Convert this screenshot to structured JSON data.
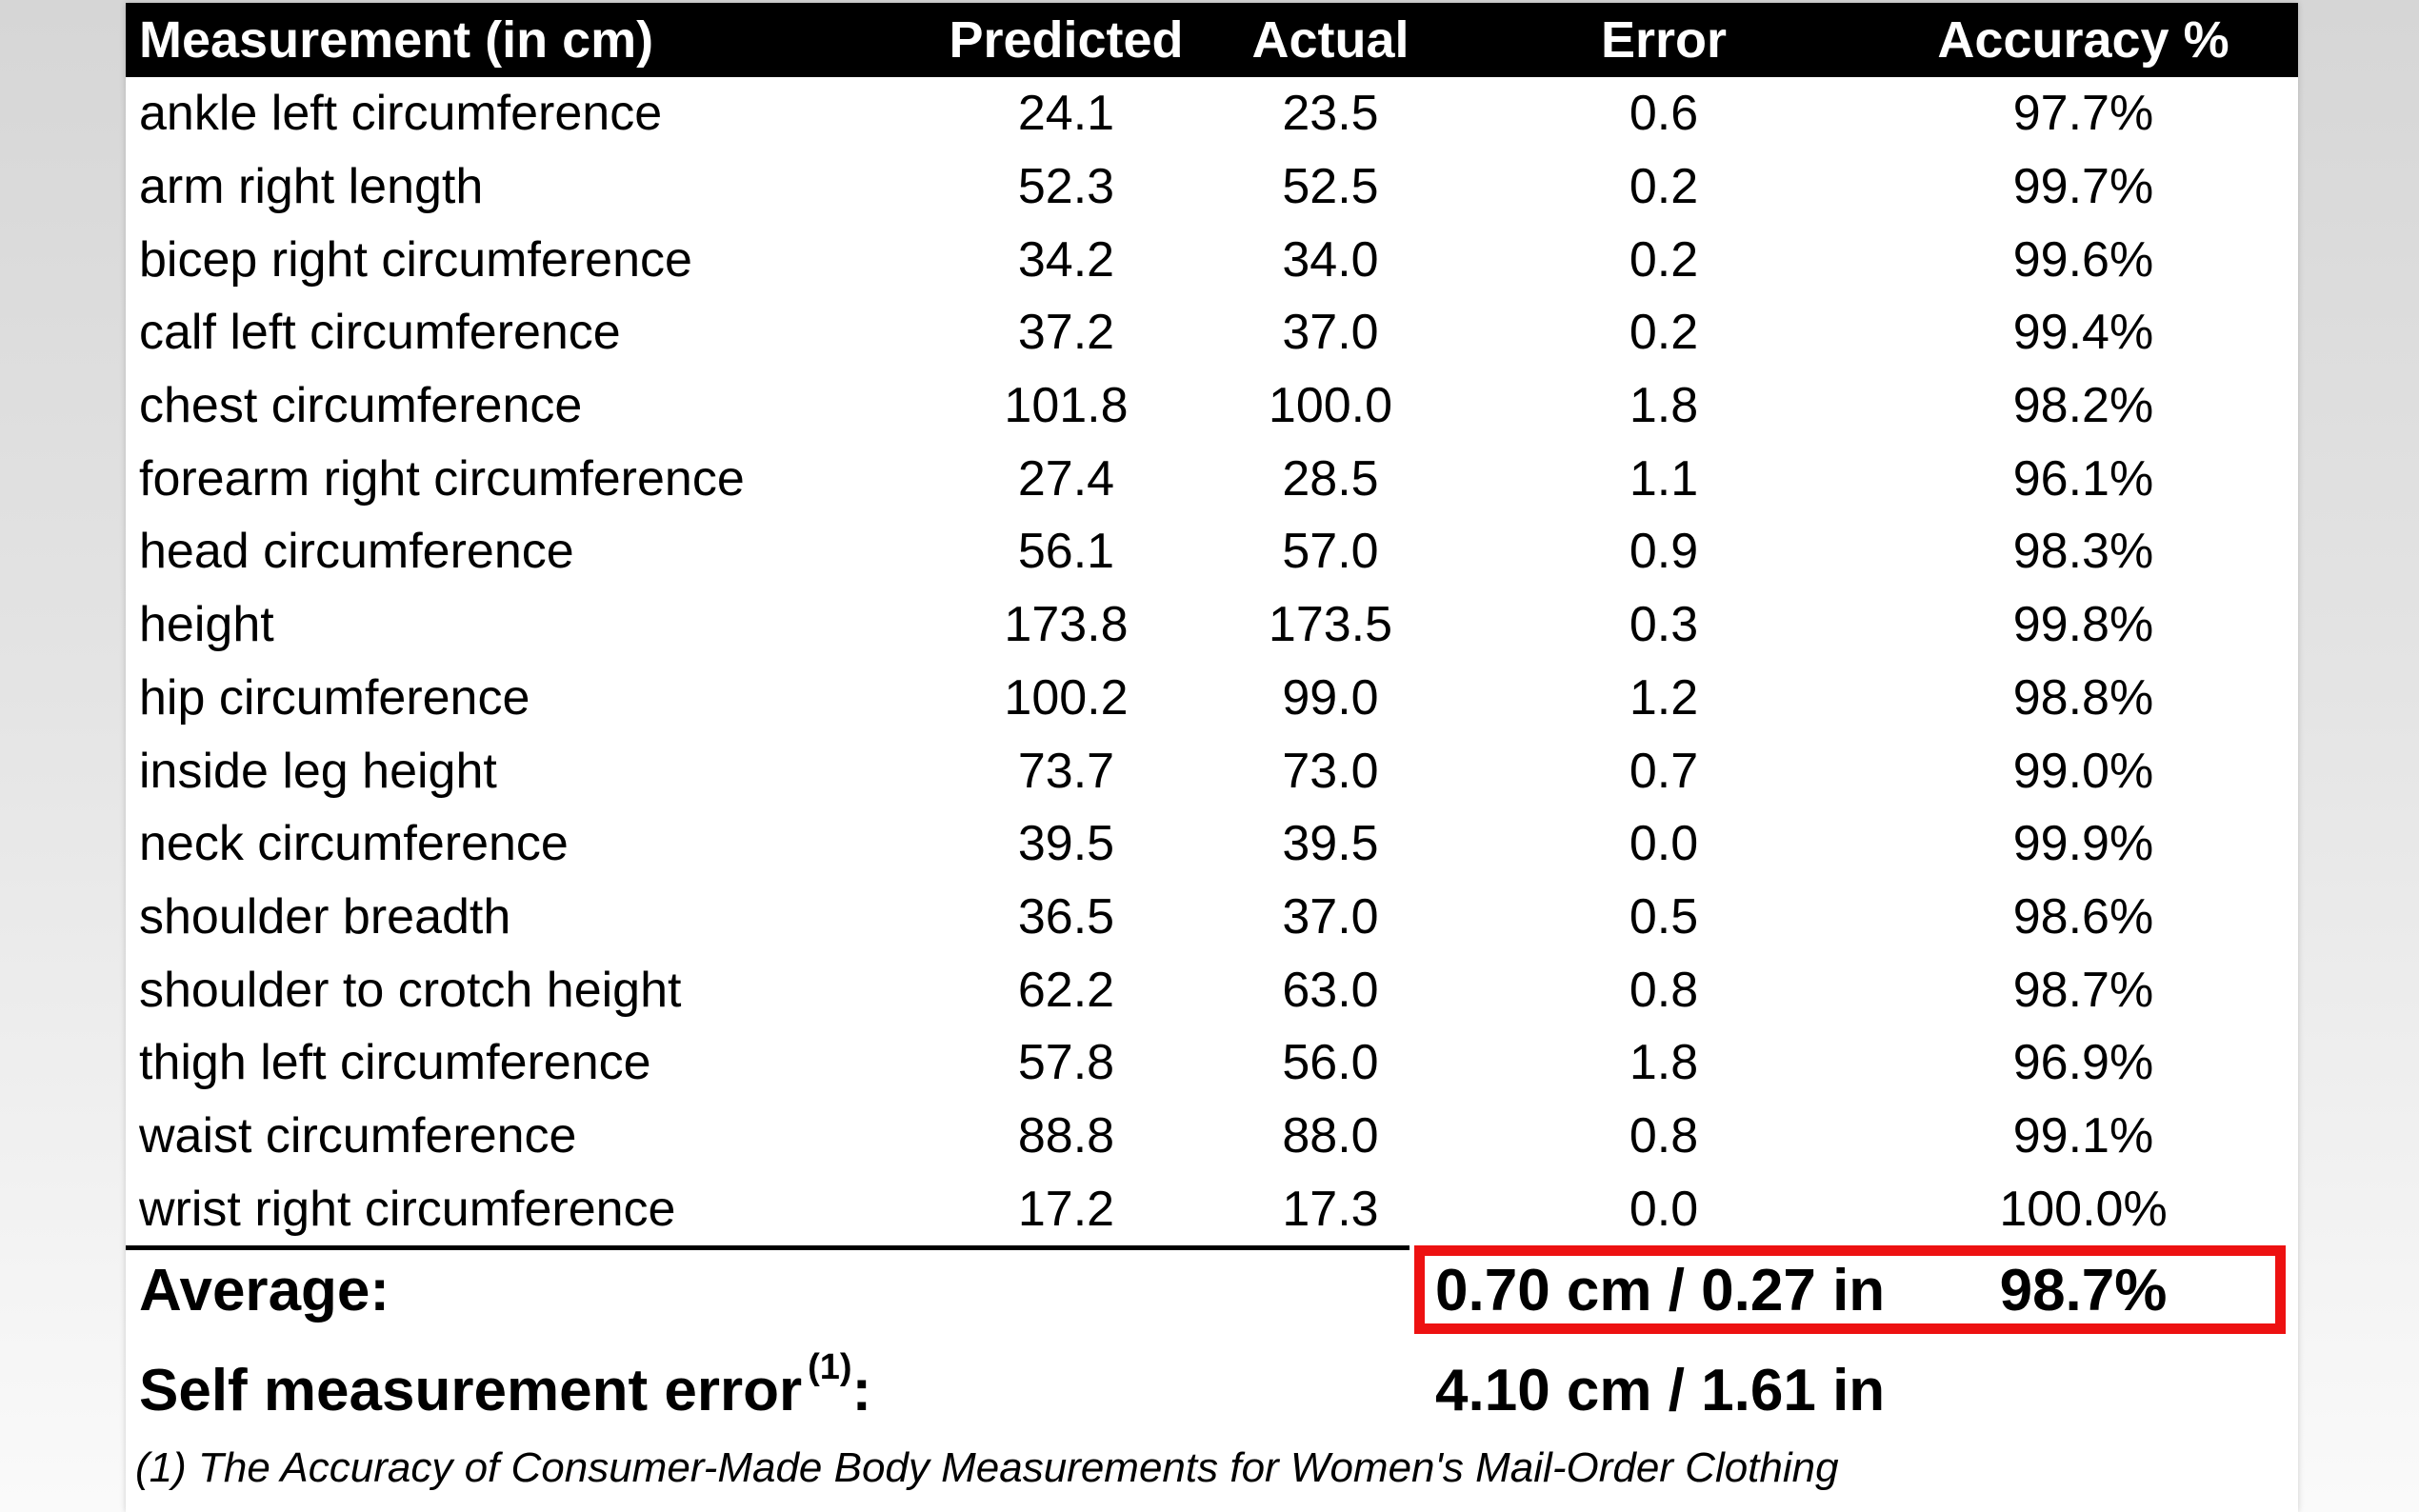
{
  "table": {
    "columns": [
      "Measurement (in cm)",
      "Predicted",
      "Actual",
      "Error",
      "Accuracy %"
    ],
    "rows": [
      {
        "measurement": "ankle left circumference",
        "predicted": "24.1",
        "actual": "23.5",
        "error": "0.6",
        "accuracy": "97.7%"
      },
      {
        "measurement": "arm right length",
        "predicted": "52.3",
        "actual": "52.5",
        "error": "0.2",
        "accuracy": "99.7%"
      },
      {
        "measurement": "bicep right circumference",
        "predicted": "34.2",
        "actual": "34.0",
        "error": "0.2",
        "accuracy": "99.6%"
      },
      {
        "measurement": "calf left circumference",
        "predicted": "37.2",
        "actual": "37.0",
        "error": "0.2",
        "accuracy": "99.4%"
      },
      {
        "measurement": "chest circumference",
        "predicted": "101.8",
        "actual": "100.0",
        "error": "1.8",
        "accuracy": "98.2%"
      },
      {
        "measurement": "forearm right circumference",
        "predicted": "27.4",
        "actual": "28.5",
        "error": "1.1",
        "accuracy": "96.1%"
      },
      {
        "measurement": "head circumference",
        "predicted": "56.1",
        "actual": "57.0",
        "error": "0.9",
        "accuracy": "98.3%"
      },
      {
        "measurement": "height",
        "predicted": "173.8",
        "actual": "173.5",
        "error": "0.3",
        "accuracy": "99.8%"
      },
      {
        "measurement": "hip circumference",
        "predicted": "100.2",
        "actual": "99.0",
        "error": "1.2",
        "accuracy": "98.8%"
      },
      {
        "measurement": "inside leg height",
        "predicted": "73.7",
        "actual": "73.0",
        "error": "0.7",
        "accuracy": "99.0%"
      },
      {
        "measurement": "neck circumference",
        "predicted": "39.5",
        "actual": "39.5",
        "error": "0.0",
        "accuracy": "99.9%"
      },
      {
        "measurement": "shoulder breadth",
        "predicted": "36.5",
        "actual": "37.0",
        "error": "0.5",
        "accuracy": "98.6%"
      },
      {
        "measurement": "shoulder to crotch height",
        "predicted": "62.2",
        "actual": "63.0",
        "error": "0.8",
        "accuracy": "98.7%"
      },
      {
        "measurement": "thigh left circumference",
        "predicted": "57.8",
        "actual": "56.0",
        "error": "1.8",
        "accuracy": "96.9%"
      },
      {
        "measurement": "waist circumference",
        "predicted": "88.8",
        "actual": "88.0",
        "error": "0.8",
        "accuracy": "99.1%"
      },
      {
        "measurement": "wrist right circumference",
        "predicted": "17.2",
        "actual": "17.3",
        "error": "0.0",
        "accuracy": "100.0%"
      }
    ]
  },
  "summary": {
    "average_label": "Average:",
    "average_value": "0.70 cm / 0.27 in",
    "average_accuracy": "98.7%",
    "self_error_label": "Self measurement error",
    "self_error_superscript": "(1)",
    "self_error_colon": ":",
    "self_error_value": "4.10 cm / 1.61 in"
  },
  "footnote": "(1) The Accuracy of Consumer-Made Body Measurements for Women's Mail-Order Clothing",
  "colors": {
    "header_bg": "#000000",
    "header_text": "#ffffff",
    "highlight_box": "#ed1111"
  }
}
